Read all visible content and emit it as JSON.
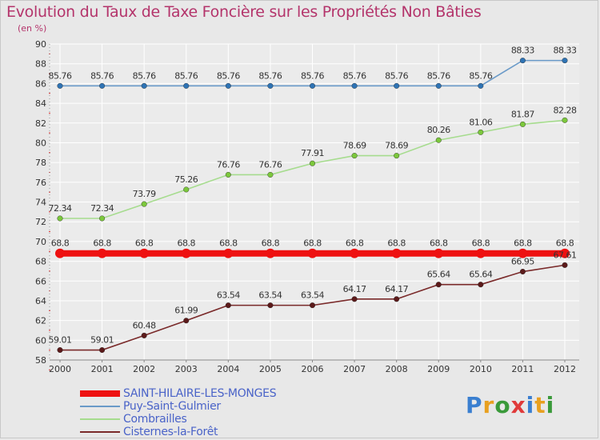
{
  "header": {
    "title": "Evolution du Taux de Taxe Foncière sur les Propriétés Non Bâties",
    "subtitle": "(en %)"
  },
  "logo": {
    "text": "Proxiti",
    "letters": [
      "P",
      "r",
      "o",
      "x",
      "i",
      "t",
      "i"
    ],
    "colors": [
      "#3a7fd0",
      "#e8a020",
      "#3a9a3a",
      "#e03a3a",
      "#3a7fd0",
      "#e8a020",
      "#3a9a3a"
    ]
  },
  "colors": {
    "title": "#b4346b",
    "axis_text": "#333333",
    "legend_text": "#4a63c8",
    "grid": "#ffffff",
    "plot_bg": "#ffffff"
  },
  "chart_data": {
    "type": "line",
    "title": "Evolution du Taux de Taxe Foncière sur les Propriétés Non Bâties",
    "ylabel": "(en %)",
    "xlabel": "",
    "ylim": [
      58,
      90
    ],
    "yticks": [
      58,
      60,
      62,
      64,
      66,
      68,
      70,
      72,
      74,
      76,
      78,
      80,
      82,
      84,
      86,
      88,
      90
    ],
    "categories": [
      "2000",
      "2001",
      "2002",
      "2003",
      "2004",
      "2005",
      "2006",
      "2007",
      "2008",
      "2009",
      "2010",
      "2011",
      "2012"
    ],
    "series": [
      {
        "name": "SAINT-HILAIRE-LES-MONGES",
        "color": "#ee1111",
        "thick": true,
        "values": [
          68.8,
          68.8,
          68.8,
          68.8,
          68.8,
          68.8,
          68.8,
          68.8,
          68.8,
          68.8,
          68.8,
          68.8,
          68.8
        ],
        "labels": [
          "68.8",
          "68.8",
          "68.8",
          "68.8",
          "68.8",
          "68.8",
          "68.8",
          "68.8",
          "68.8",
          "68.8",
          "68.8",
          "68.8",
          "68.8"
        ]
      },
      {
        "name": "Puy-Saint-Gulmier",
        "color": "#6a9ac8",
        "marker": "#2f74b5",
        "values": [
          85.76,
          85.76,
          85.76,
          85.76,
          85.76,
          85.76,
          85.76,
          85.76,
          85.76,
          85.76,
          85.76,
          88.33,
          88.33
        ],
        "labels": [
          "85.76",
          "85.76",
          "85.76",
          "85.76",
          "85.76",
          "85.76",
          "85.76",
          "85.76",
          "85.76",
          "85.76",
          "85.76",
          "88.33",
          "88.33"
        ]
      },
      {
        "name": "Combrailles",
        "color": "#a6dc8e",
        "marker": "#7cc83c",
        "values": [
          72.34,
          72.34,
          73.79,
          75.26,
          76.76,
          76.76,
          77.91,
          78.69,
          78.69,
          80.26,
          81.06,
          81.87,
          82.28
        ],
        "labels": [
          "72.34",
          "72.34",
          "73.79",
          "75.26",
          "76.76",
          "76.76",
          "77.91",
          "78.69",
          "78.69",
          "80.26",
          "81.06",
          "81.87",
          "82.28"
        ]
      },
      {
        "name": "Cisternes-la-Forêt",
        "color": "#7a2a2a",
        "marker": "#5c1a1a",
        "values": [
          59.01,
          59.01,
          60.48,
          61.99,
          63.54,
          63.54,
          63.54,
          64.17,
          64.17,
          65.64,
          65.64,
          66.95,
          67.61
        ],
        "labels": [
          "59.01",
          "59.01",
          "60.48",
          "61.99",
          "63.54",
          "63.54",
          "63.54",
          "64.17",
          "64.17",
          "65.64",
          "65.64",
          "66.95",
          "67.61"
        ]
      }
    ]
  }
}
